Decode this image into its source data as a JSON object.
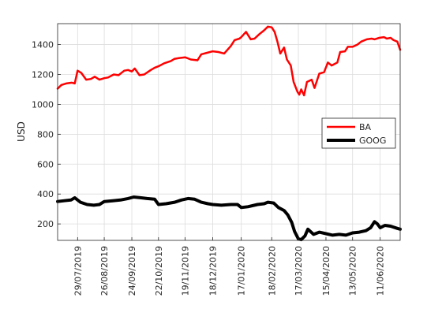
{
  "chart_data": {
    "type": "line",
    "title": "",
    "xlabel": "",
    "ylabel": "USD",
    "ylim": [
      90,
      1540
    ],
    "xlim": [
      "2019-07-08",
      "2020-07-02"
    ],
    "yticks": [
      200,
      400,
      600,
      800,
      1000,
      1200,
      1400
    ],
    "xticks": [
      "29/07/2019",
      "26/08/2019",
      "24/09/2019",
      "22/10/2019",
      "19/11/2019",
      "18/12/2019",
      "17/01/2020",
      "18/02/2020",
      "17/03/2020",
      "15/04/2020",
      "13/05/2020",
      "11/06/2020"
    ],
    "xtick_dates": [
      "2019-07-29",
      "2019-08-26",
      "2019-09-24",
      "2019-10-22",
      "2019-11-19",
      "2019-12-18",
      "2020-01-17",
      "2020-02-18",
      "2020-03-17",
      "2020-04-15",
      "2020-05-13",
      "2020-06-11"
    ],
    "grid": true,
    "legend_position": "right",
    "series": [
      {
        "name": "BA",
        "color": "#ff0000",
        "points": [
          [
            "2019-07-08",
            1105
          ],
          [
            "2019-07-12",
            1130
          ],
          [
            "2019-07-17",
            1140
          ],
          [
            "2019-07-23",
            1145
          ],
          [
            "2019-07-26",
            1140
          ],
          [
            "2019-07-29",
            1225
          ],
          [
            "2019-08-02",
            1210
          ],
          [
            "2019-08-07",
            1165
          ],
          [
            "2019-08-12",
            1170
          ],
          [
            "2019-08-16",
            1185
          ],
          [
            "2019-08-21",
            1165
          ],
          [
            "2019-08-26",
            1175
          ],
          [
            "2019-08-30",
            1180
          ],
          [
            "2019-09-05",
            1200
          ],
          [
            "2019-09-10",
            1195
          ],
          [
            "2019-09-16",
            1225
          ],
          [
            "2019-09-20",
            1230
          ],
          [
            "2019-09-24",
            1220
          ],
          [
            "2019-09-27",
            1240
          ],
          [
            "2019-10-02",
            1195
          ],
          [
            "2019-10-07",
            1200
          ],
          [
            "2019-10-14",
            1230
          ],
          [
            "2019-10-18",
            1245
          ],
          [
            "2019-10-22",
            1255
          ],
          [
            "2019-10-28",
            1275
          ],
          [
            "2019-11-04",
            1290
          ],
          [
            "2019-11-08",
            1305
          ],
          [
            "2019-11-13",
            1310
          ],
          [
            "2019-11-19",
            1315
          ],
          [
            "2019-11-25",
            1300
          ],
          [
            "2019-12-02",
            1295
          ],
          [
            "2019-12-06",
            1335
          ],
          [
            "2019-12-12",
            1345
          ],
          [
            "2019-12-18",
            1355
          ],
          [
            "2019-12-24",
            1350
          ],
          [
            "2019-12-30",
            1340
          ],
          [
            "2020-01-06",
            1390
          ],
          [
            "2020-01-10",
            1430
          ],
          [
            "2020-01-15",
            1440
          ],
          [
            "2020-01-17",
            1450
          ],
          [
            "2020-01-22",
            1485
          ],
          [
            "2020-01-27",
            1435
          ],
          [
            "2020-01-31",
            1440
          ],
          [
            "2020-02-05",
            1470
          ],
          [
            "2020-02-10",
            1495
          ],
          [
            "2020-02-14",
            1520
          ],
          [
            "2020-02-18",
            1515
          ],
          [
            "2020-02-21",
            1485
          ],
          [
            "2020-02-24",
            1420
          ],
          [
            "2020-02-27",
            1340
          ],
          [
            "2020-03-02",
            1380
          ],
          [
            "2020-03-05",
            1300
          ],
          [
            "2020-03-09",
            1260
          ],
          [
            "2020-03-12",
            1150
          ],
          [
            "2020-03-16",
            1085
          ],
          [
            "2020-03-18",
            1065
          ],
          [
            "2020-03-20",
            1100
          ],
          [
            "2020-03-23",
            1060
          ],
          [
            "2020-03-26",
            1150
          ],
          [
            "2020-03-31",
            1165
          ],
          [
            "2020-04-03",
            1110
          ],
          [
            "2020-04-08",
            1205
          ],
          [
            "2020-04-13",
            1215
          ],
          [
            "2020-04-17",
            1280
          ],
          [
            "2020-04-21",
            1260
          ],
          [
            "2020-04-27",
            1280
          ],
          [
            "2020-04-30",
            1350
          ],
          [
            "2020-05-05",
            1355
          ],
          [
            "2020-05-08",
            1385
          ],
          [
            "2020-05-13",
            1385
          ],
          [
            "2020-05-18",
            1400
          ],
          [
            "2020-05-22",
            1420
          ],
          [
            "2020-05-28",
            1435
          ],
          [
            "2020-06-02",
            1440
          ],
          [
            "2020-06-05",
            1435
          ],
          [
            "2020-06-10",
            1445
          ],
          [
            "2020-06-15",
            1450
          ],
          [
            "2020-06-18",
            1440
          ],
          [
            "2020-06-22",
            1445
          ],
          [
            "2020-06-25",
            1430
          ],
          [
            "2020-06-29",
            1420
          ],
          [
            "2020-07-02",
            1365
          ]
        ]
      },
      {
        "name": "GOOG",
        "color": "#000000",
        "points": [
          [
            "2019-07-08",
            350
          ],
          [
            "2019-07-15",
            355
          ],
          [
            "2019-07-22",
            360
          ],
          [
            "2019-07-26",
            375
          ],
          [
            "2019-08-01",
            345
          ],
          [
            "2019-08-08",
            330
          ],
          [
            "2019-08-15",
            325
          ],
          [
            "2019-08-21",
            330
          ],
          [
            "2019-08-26",
            350
          ],
          [
            "2019-09-04",
            355
          ],
          [
            "2019-09-12",
            360
          ],
          [
            "2019-09-20",
            370
          ],
          [
            "2019-09-26",
            380
          ],
          [
            "2019-10-03",
            375
          ],
          [
            "2019-10-10",
            370
          ],
          [
            "2019-10-18",
            365
          ],
          [
            "2019-10-22",
            330
          ],
          [
            "2019-10-30",
            335
          ],
          [
            "2019-11-08",
            345
          ],
          [
            "2019-11-15",
            360
          ],
          [
            "2019-11-22",
            370
          ],
          [
            "2019-11-29",
            365
          ],
          [
            "2019-12-06",
            345
          ],
          [
            "2019-12-13",
            335
          ],
          [
            "2019-12-18",
            330
          ],
          [
            "2019-12-27",
            325
          ],
          [
            "2020-01-06",
            330
          ],
          [
            "2020-01-13",
            330
          ],
          [
            "2020-01-17",
            310
          ],
          [
            "2020-01-24",
            315
          ],
          [
            "2020-02-03",
            330
          ],
          [
            "2020-02-10",
            335
          ],
          [
            "2020-02-14",
            345
          ],
          [
            "2020-02-20",
            340
          ],
          [
            "2020-02-25",
            310
          ],
          [
            "2020-03-02",
            290
          ],
          [
            "2020-03-06",
            260
          ],
          [
            "2020-03-10",
            210
          ],
          [
            "2020-03-13",
            150
          ],
          [
            "2020-03-17",
            100
          ],
          [
            "2020-03-20",
            95
          ],
          [
            "2020-03-24",
            120
          ],
          [
            "2020-03-27",
            165
          ],
          [
            "2020-04-02",
            130
          ],
          [
            "2020-04-08",
            145
          ],
          [
            "2020-04-15",
            135
          ],
          [
            "2020-04-22",
            125
          ],
          [
            "2020-04-29",
            130
          ],
          [
            "2020-05-06",
            125
          ],
          [
            "2020-05-13",
            140
          ],
          [
            "2020-05-20",
            145
          ],
          [
            "2020-05-27",
            155
          ],
          [
            "2020-06-01",
            175
          ],
          [
            "2020-06-05",
            215
          ],
          [
            "2020-06-08",
            200
          ],
          [
            "2020-06-11",
            175
          ],
          [
            "2020-06-16",
            190
          ],
          [
            "2020-06-22",
            185
          ],
          [
            "2020-06-29",
            170
          ],
          [
            "2020-07-02",
            165
          ]
        ]
      }
    ]
  }
}
